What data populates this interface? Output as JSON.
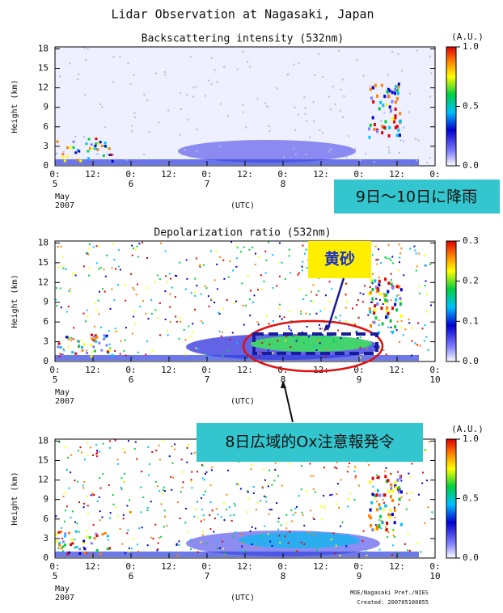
{
  "title": "Lidar Observation at Nagasaki, Japan",
  "chart_data": [
    {
      "type": "heatmap",
      "title": "Backscattering intensity (532nm)",
      "ylabel": "Height (km)",
      "xlabel": "(UTC)",
      "date_labels": [
        "May",
        "2007"
      ],
      "xlim": [
        0,
        120
      ],
      "xticks": [
        {
          "value": 0,
          "label": "0:"
        },
        {
          "value": 12,
          "label": "12:"
        },
        {
          "value": 24,
          "label": "0:"
        },
        {
          "value": 36,
          "label": "12:"
        },
        {
          "value": 48,
          "label": "0:"
        },
        {
          "value": 60,
          "label": "12:"
        },
        {
          "value": 72,
          "label": "0:"
        },
        {
          "value": 84,
          "label": "12:"
        },
        {
          "value": 96,
          "label": "0:"
        },
        {
          "value": 108,
          "label": "12:"
        },
        {
          "value": 120,
          "label": "0:"
        }
      ],
      "day_labels": [
        {
          "value": 0,
          "label": "5"
        },
        {
          "value": 24,
          "label": "6"
        },
        {
          "value": 48,
          "label": "7"
        },
        {
          "value": 72,
          "label": "8"
        }
      ],
      "ylim": [
        0,
        18.3
      ],
      "yticks": [
        0,
        3,
        6,
        9,
        12,
        15,
        18
      ],
      "colorbar": {
        "label": "(A.U.)",
        "lim": [
          0,
          1
        ],
        "ticks": [
          {
            "value": 0,
            "label": "0.0"
          },
          0.5,
          {
            "value": 1,
            "label": "1.0"
          }
        ]
      },
      "annotations": [
        "9日～10日に降雨"
      ]
    },
    {
      "type": "heatmap",
      "title": "Depolarization ratio (532nm)",
      "ylabel": "Height (km)",
      "xlabel": "(UTC)",
      "date_labels": [
        "May",
        "2007"
      ],
      "xlim": [
        0,
        120
      ],
      "xticks": [
        {
          "value": 0,
          "label": "0:"
        },
        {
          "value": 12,
          "label": "12:"
        },
        {
          "value": 24,
          "label": "0:"
        },
        {
          "value": 36,
          "label": "12:"
        },
        {
          "value": 48,
          "label": "0:"
        },
        {
          "value": 60,
          "label": "12:"
        },
        {
          "value": 72,
          "label": "0:"
        },
        {
          "value": 84,
          "label": "12:"
        },
        {
          "value": 96,
          "label": "0:"
        },
        {
          "value": 108,
          "label": "12:"
        },
        {
          "value": 120,
          "label": "0:"
        }
      ],
      "day_labels": [
        {
          "value": 0,
          "label": "5"
        },
        {
          "value": 24,
          "label": "6"
        },
        {
          "value": 48,
          "label": "7"
        },
        {
          "value": 72,
          "label": "8"
        },
        {
          "value": 96,
          "label": "9"
        },
        {
          "value": 120,
          "label": "10"
        }
      ],
      "ylim": [
        0,
        18.3
      ],
      "yticks": [
        0,
        3,
        6,
        9,
        12,
        15,
        18
      ],
      "colorbar": {
        "lim": [
          0,
          0.3
        ],
        "ticks": [
          {
            "value": 0,
            "label": "0.0"
          },
          0.1,
          0.2,
          0.3
        ]
      },
      "annotations": [
        "黄砂",
        "8日広域的Ox注意報発令"
      ]
    },
    {
      "type": "heatmap",
      "ylabel": "Height (km)",
      "xlabel": "(UTC)",
      "date_labels": [
        "May",
        "2007"
      ],
      "xlim": [
        0,
        120
      ],
      "xticks": [
        {
          "value": 0,
          "label": "0:"
        },
        {
          "value": 12,
          "label": "12:"
        },
        {
          "value": 24,
          "label": "0:"
        },
        {
          "value": 36,
          "label": "12:"
        },
        {
          "value": 48,
          "label": "0:"
        },
        {
          "value": 60,
          "label": "12:"
        },
        {
          "value": 72,
          "label": "0:"
        },
        {
          "value": 84,
          "label": "12:"
        },
        {
          "value": 96,
          "label": "0:"
        },
        {
          "value": 108,
          "label": "12:"
        },
        {
          "value": 120,
          "label": "0:"
        }
      ],
      "day_labels": [
        {
          "value": 0,
          "label": "5"
        },
        {
          "value": 24,
          "label": "6"
        },
        {
          "value": 48,
          "label": "7"
        },
        {
          "value": 72,
          "label": "8"
        },
        {
          "value": 96,
          "label": "9"
        },
        {
          "value": 120,
          "label": "10"
        }
      ],
      "ylim": [
        0,
        18.3
      ],
      "yticks": [
        0,
        3,
        6,
        9,
        12,
        15,
        18
      ],
      "colorbar": {
        "label": "(A.U.)",
        "lim": [
          0,
          1
        ],
        "ticks": [
          {
            "value": 0,
            "label": "0.0"
          },
          0.5,
          {
            "value": 1,
            "label": "1.0"
          }
        ]
      }
    }
  ],
  "footer": {
    "credit": "MOE/Nagasaki Pref./NIES",
    "created": "Created: 200705100855"
  }
}
